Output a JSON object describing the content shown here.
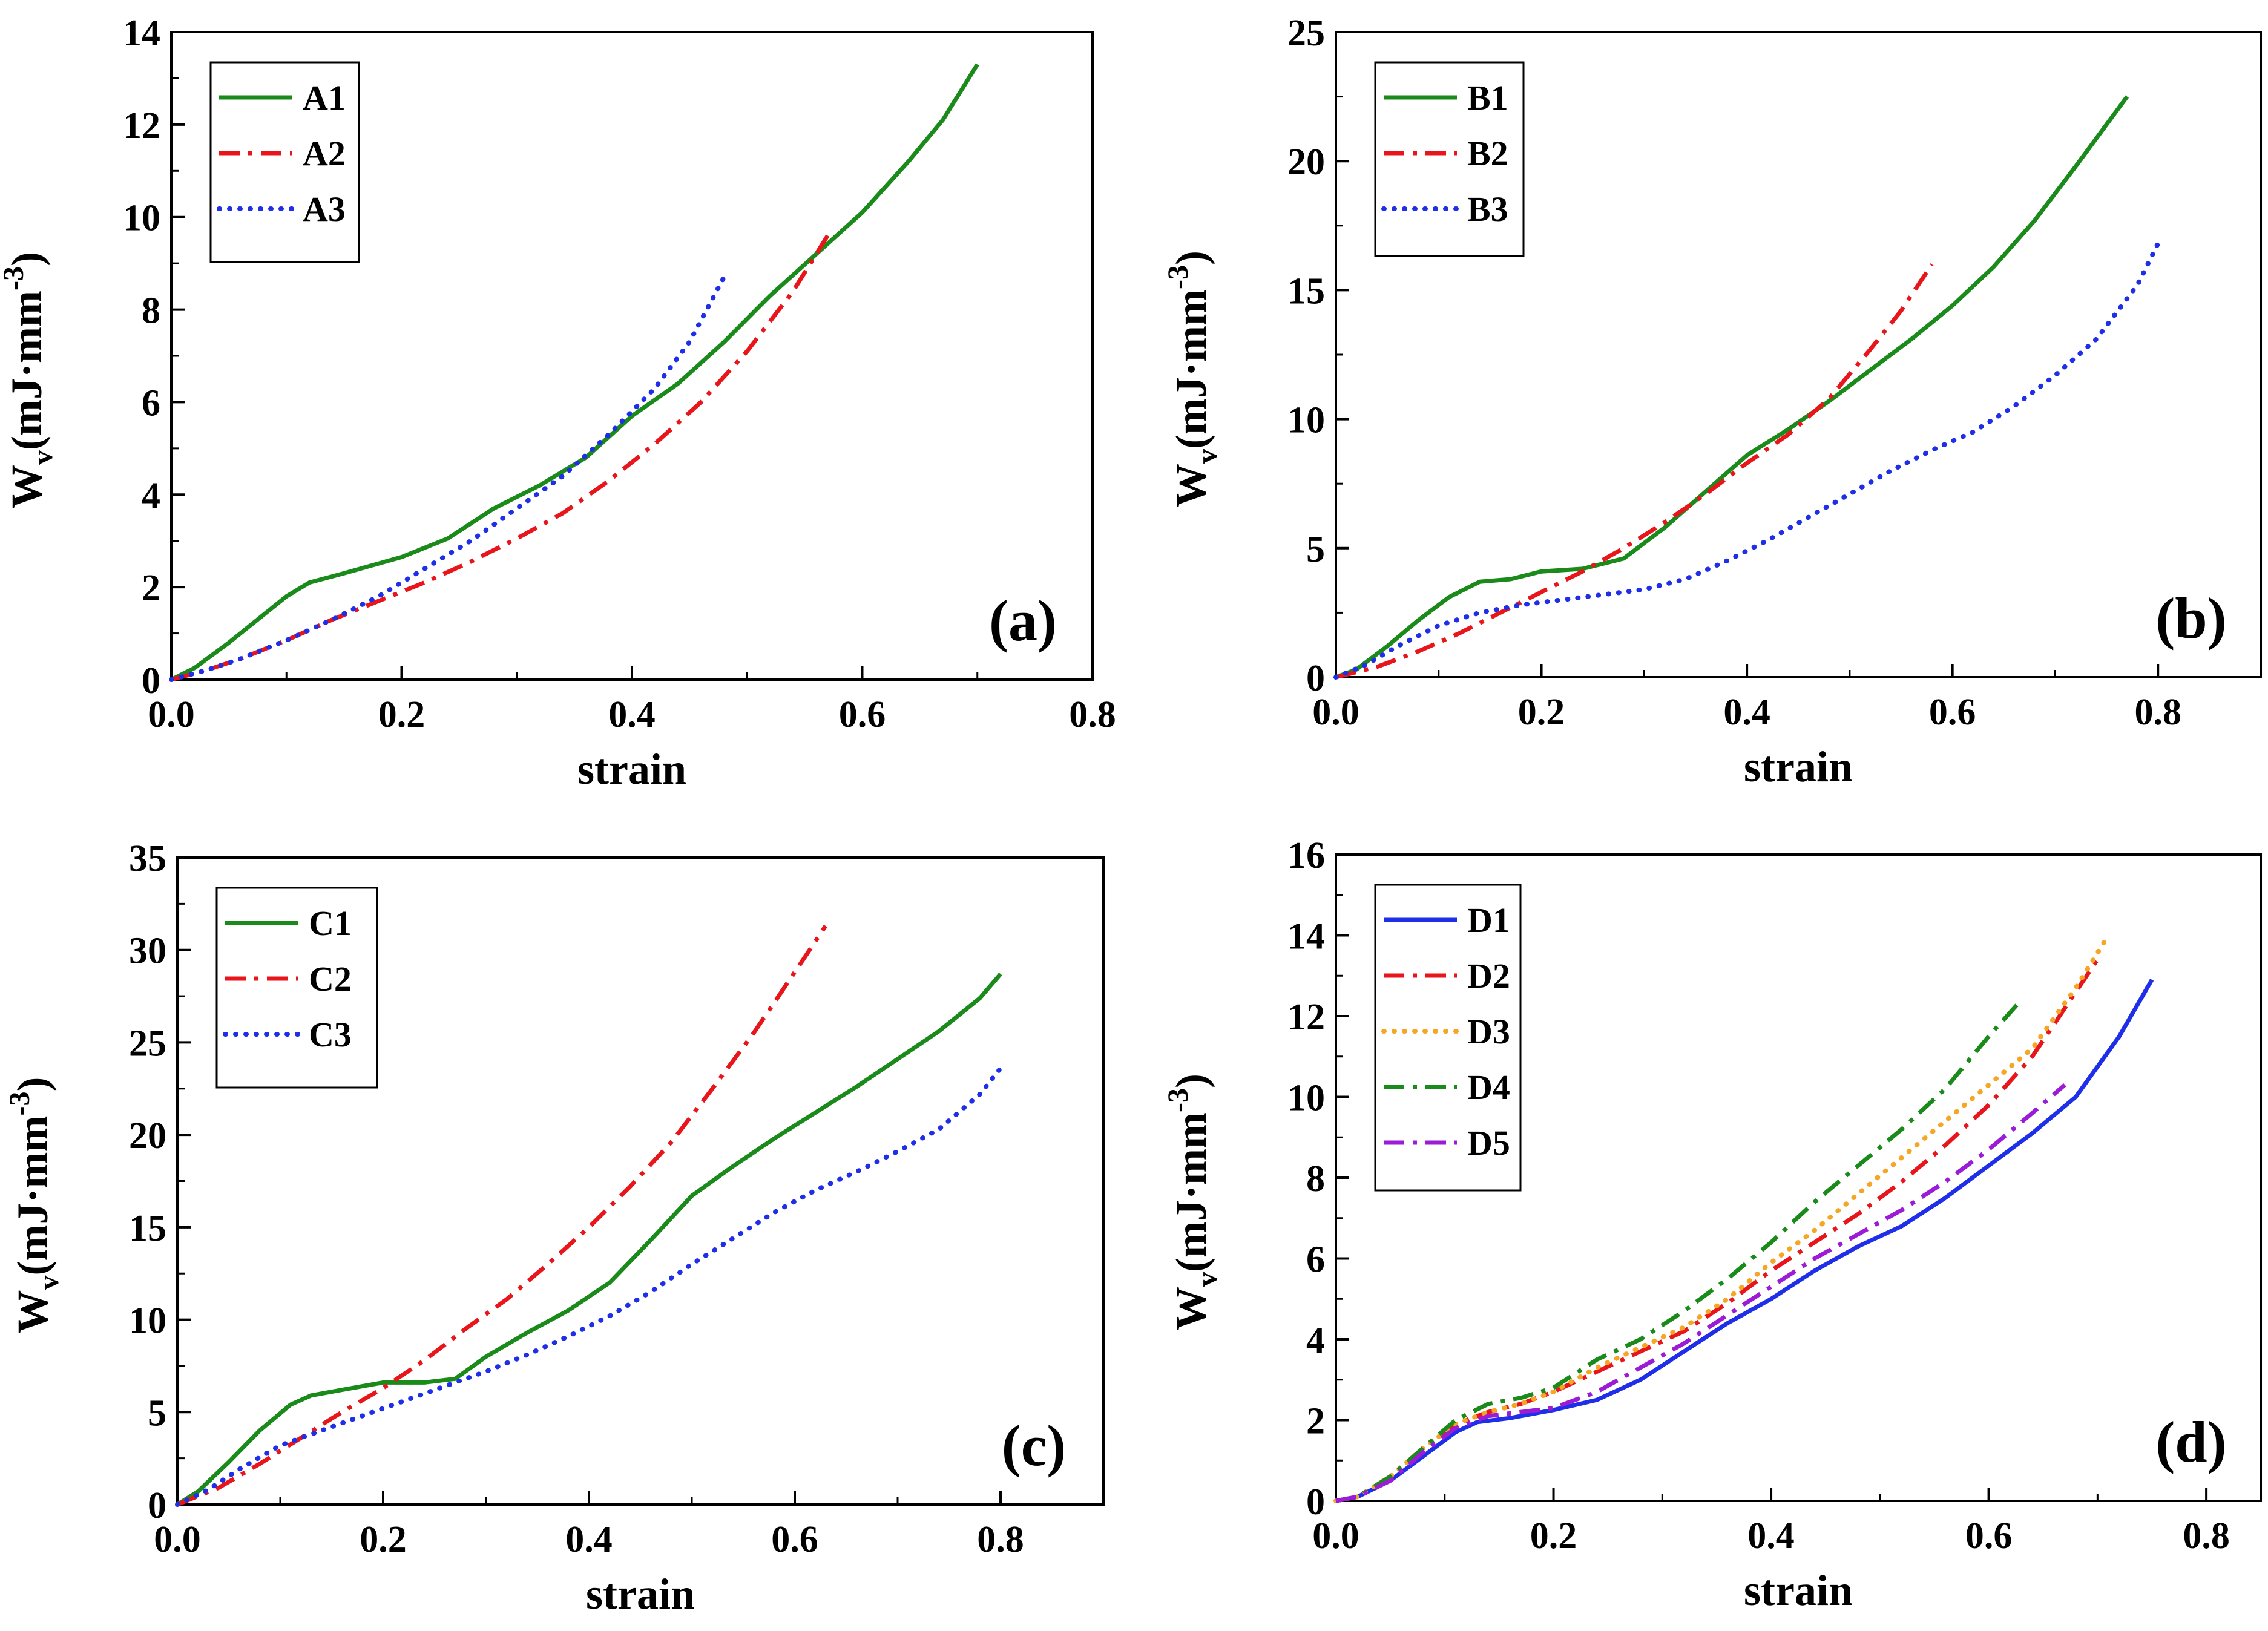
{
  "figure_title": "",
  "chart_data": [
    {
      "type": "line",
      "panel_label": "(a)",
      "xlabel": "strain",
      "ylabel": "W",
      "ylabel_sub": "v",
      "ylabel_units": "(mJ·mm",
      "ylabel_sup": "-3",
      "ylabel_close": ")",
      "xlim": [
        0,
        0.8
      ],
      "ylim": [
        0,
        14
      ],
      "xticks": [
        0.0,
        0.2,
        0.4,
        0.6,
        0.8
      ],
      "xtick_labels": [
        "0.0",
        "0.2",
        "0.4",
        "0.6",
        "0.8"
      ],
      "yticks": [
        0,
        2,
        4,
        6,
        8,
        10,
        12,
        14
      ],
      "ytick_labels": [
        "0",
        "2",
        "4",
        "6",
        "8",
        "10",
        "12",
        "14"
      ],
      "legend_position": "top-left",
      "series": [
        {
          "name": "A1",
          "color": "#1a8a1a",
          "style": "solid",
          "x": [
            0,
            0.02,
            0.05,
            0.08,
            0.1,
            0.12,
            0.15,
            0.2,
            0.24,
            0.28,
            0.32,
            0.36,
            0.4,
            0.44,
            0.48,
            0.52,
            0.56,
            0.6,
            0.64,
            0.67,
            0.7
          ],
          "y": [
            0,
            0.25,
            0.8,
            1.4,
            1.8,
            2.1,
            2.3,
            2.65,
            3.05,
            3.7,
            4.2,
            4.8,
            5.7,
            6.4,
            7.3,
            8.3,
            9.2,
            10.1,
            11.2,
            12.1,
            13.3
          ]
        },
        {
          "name": "A2",
          "color": "#e8161b",
          "style": "dashdot",
          "x": [
            0,
            0.03,
            0.06,
            0.1,
            0.14,
            0.18,
            0.22,
            0.26,
            0.3,
            0.34,
            0.38,
            0.42,
            0.46,
            0.5,
            0.54,
            0.57
          ],
          "y": [
            0,
            0.2,
            0.45,
            0.85,
            1.3,
            1.7,
            2.1,
            2.55,
            3.05,
            3.6,
            4.3,
            5.1,
            6.0,
            7.1,
            8.4,
            9.6
          ]
        },
        {
          "name": "A3",
          "color": "#1f2ee8",
          "style": "dot",
          "x": [
            0,
            0.03,
            0.06,
            0.1,
            0.14,
            0.18,
            0.22,
            0.26,
            0.3,
            0.34,
            0.38,
            0.42,
            0.45,
            0.48
          ],
          "y": [
            0,
            0.2,
            0.45,
            0.85,
            1.3,
            1.8,
            2.4,
            3.0,
            3.7,
            4.4,
            5.3,
            6.3,
            7.3,
            8.7
          ]
        }
      ]
    },
    {
      "type": "line",
      "panel_label": "(b)",
      "xlabel": "strain",
      "ylabel": "W",
      "ylabel_sub": "v",
      "ylabel_units": "(mJ·mm",
      "ylabel_sup": "-3",
      "ylabel_close": ")",
      "xlim": [
        0,
        0.9
      ],
      "ylim": [
        0,
        25
      ],
      "xticks": [
        0.0,
        0.2,
        0.4,
        0.6,
        0.8
      ],
      "xtick_labels": [
        "0.0",
        "0.2",
        "0.4",
        "0.6",
        "0.8"
      ],
      "yticks": [
        0,
        5,
        10,
        15,
        20,
        25
      ],
      "ytick_labels": [
        "0",
        "5",
        "10",
        "15",
        "20",
        "25"
      ],
      "legend_position": "top-left",
      "series": [
        {
          "name": "B1",
          "color": "#1a8a1a",
          "style": "solid",
          "x": [
            0,
            0.02,
            0.05,
            0.08,
            0.11,
            0.14,
            0.17,
            0.2,
            0.24,
            0.28,
            0.32,
            0.36,
            0.4,
            0.44,
            0.48,
            0.52,
            0.56,
            0.6,
            0.64,
            0.68,
            0.72,
            0.77
          ],
          "y": [
            0,
            0.3,
            1.2,
            2.2,
            3.1,
            3.7,
            3.8,
            4.1,
            4.2,
            4.6,
            5.8,
            7.2,
            8.6,
            9.6,
            10.7,
            11.9,
            13.1,
            14.4,
            15.9,
            17.7,
            19.8,
            22.5
          ]
        },
        {
          "name": "B2",
          "color": "#e8161b",
          "style": "dashdot",
          "x": [
            0,
            0.04,
            0.08,
            0.12,
            0.16,
            0.2,
            0.24,
            0.28,
            0.32,
            0.36,
            0.4,
            0.44,
            0.48,
            0.52,
            0.55,
            0.58
          ],
          "y": [
            0,
            0.4,
            1.0,
            1.7,
            2.5,
            3.3,
            4.1,
            5.0,
            6.0,
            7.1,
            8.3,
            9.4,
            10.8,
            12.7,
            14.2,
            16.0
          ]
        },
        {
          "name": "B3",
          "color": "#1f2ee8",
          "style": "dot",
          "x": [
            0,
            0.03,
            0.06,
            0.1,
            0.14,
            0.18,
            0.22,
            0.26,
            0.3,
            0.34,
            0.38,
            0.42,
            0.46,
            0.5,
            0.54,
            0.58,
            0.62,
            0.66,
            0.7,
            0.74,
            0.78,
            0.8
          ],
          "y": [
            0,
            0.5,
            1.2,
            2.0,
            2.5,
            2.8,
            3.0,
            3.2,
            3.4,
            3.8,
            4.5,
            5.3,
            6.2,
            7.1,
            8.0,
            8.8,
            9.5,
            10.5,
            11.7,
            13.1,
            15.2,
            16.8
          ]
        }
      ]
    },
    {
      "type": "line",
      "panel_label": "(c)",
      "xlabel": "strain",
      "ylabel": "W",
      "ylabel_sub": "v",
      "ylabel_units": "(mJ·mm",
      "ylabel_sup": "-3",
      "ylabel_close": ")",
      "xlim": [
        0,
        0.9
      ],
      "ylim": [
        0,
        35
      ],
      "xticks": [
        0.0,
        0.2,
        0.4,
        0.6,
        0.8
      ],
      "xtick_labels": [
        "0.0",
        "0.2",
        "0.4",
        "0.6",
        "0.8"
      ],
      "yticks": [
        0,
        5,
        10,
        15,
        20,
        25,
        30,
        35
      ],
      "ytick_labels": [
        "0",
        "5",
        "10",
        "15",
        "20",
        "25",
        "30",
        "35"
      ],
      "legend_position": "top-left",
      "series": [
        {
          "name": "C1",
          "color": "#1a8a1a",
          "style": "solid",
          "x": [
            0,
            0.02,
            0.05,
            0.08,
            0.11,
            0.13,
            0.16,
            0.2,
            0.24,
            0.27,
            0.3,
            0.34,
            0.38,
            0.42,
            0.46,
            0.5,
            0.54,
            0.58,
            0.62,
            0.66,
            0.7,
            0.74,
            0.78,
            0.8
          ],
          "y": [
            0,
            0.7,
            2.3,
            4.0,
            5.4,
            5.9,
            6.2,
            6.6,
            6.6,
            6.8,
            8.0,
            9.3,
            10.5,
            12.0,
            14.3,
            16.7,
            18.3,
            19.8,
            21.2,
            22.6,
            24.1,
            25.6,
            27.4,
            28.7
          ]
        },
        {
          "name": "C2",
          "color": "#e8161b",
          "style": "dashdot",
          "x": [
            0,
            0.04,
            0.08,
            0.12,
            0.16,
            0.2,
            0.24,
            0.28,
            0.32,
            0.36,
            0.4,
            0.44,
            0.48,
            0.52,
            0.56,
            0.6,
            0.63
          ],
          "y": [
            0,
            0.9,
            2.2,
            3.6,
            5.0,
            6.3,
            7.8,
            9.5,
            11.1,
            13.0,
            15.0,
            17.2,
            19.6,
            22.5,
            25.5,
            28.8,
            31.3
          ]
        },
        {
          "name": "C3",
          "color": "#1f2ee8",
          "style": "dot",
          "x": [
            0,
            0.03,
            0.06,
            0.1,
            0.14,
            0.18,
            0.22,
            0.26,
            0.3,
            0.34,
            0.38,
            0.42,
            0.46,
            0.5,
            0.54,
            0.58,
            0.62,
            0.66,
            0.7,
            0.74,
            0.78,
            0.8
          ],
          "y": [
            0,
            0.8,
            1.9,
            3.2,
            4.0,
            4.8,
            5.6,
            6.4,
            7.2,
            8.1,
            9.1,
            10.2,
            11.5,
            13.0,
            14.4,
            15.8,
            17.0,
            18.0,
            19.1,
            20.3,
            22.2,
            23.6
          ]
        }
      ]
    },
    {
      "type": "line",
      "panel_label": "(d)",
      "xlabel": "strain",
      "ylabel": "W",
      "ylabel_sub": "v",
      "ylabel_units": "(mJ·mm",
      "ylabel_sup": "-3",
      "ylabel_close": ")",
      "xlim": [
        0,
        0.85
      ],
      "ylim": [
        0,
        16
      ],
      "xticks": [
        0.0,
        0.2,
        0.4,
        0.6,
        0.8
      ],
      "xtick_labels": [
        "0.0",
        "0.2",
        "0.4",
        "0.6",
        "0.8"
      ],
      "yticks": [
        0,
        2,
        4,
        6,
        8,
        10,
        12,
        14,
        16
      ],
      "ytick_labels": [
        "0",
        "2",
        "4",
        "6",
        "8",
        "10",
        "12",
        "14",
        "16"
      ],
      "legend_position": "top-left",
      "series": [
        {
          "name": "D1",
          "color": "#1f2ee8",
          "style": "solid",
          "x": [
            0,
            0.02,
            0.05,
            0.08,
            0.11,
            0.13,
            0.16,
            0.2,
            0.24,
            0.28,
            0.32,
            0.36,
            0.4,
            0.44,
            0.48,
            0.52,
            0.56,
            0.6,
            0.64,
            0.68,
            0.72,
            0.75
          ],
          "y": [
            0,
            0.1,
            0.5,
            1.1,
            1.7,
            1.95,
            2.05,
            2.25,
            2.5,
            3.0,
            3.7,
            4.4,
            5.0,
            5.7,
            6.3,
            6.8,
            7.5,
            8.3,
            9.1,
            10.0,
            11.5,
            12.9
          ]
        },
        {
          "name": "D2",
          "color": "#e8161b",
          "style": "dashdot",
          "x": [
            0,
            0.02,
            0.05,
            0.08,
            0.11,
            0.14,
            0.17,
            0.2,
            0.24,
            0.28,
            0.32,
            0.36,
            0.4,
            0.44,
            0.48,
            0.52,
            0.56,
            0.6,
            0.64,
            0.68,
            0.7
          ],
          "y": [
            0,
            0.1,
            0.6,
            1.3,
            1.9,
            2.2,
            2.4,
            2.7,
            3.2,
            3.7,
            4.2,
            4.9,
            5.7,
            6.4,
            7.1,
            7.9,
            8.8,
            9.8,
            11.0,
            12.6,
            13.4
          ]
        },
        {
          "name": "D3",
          "color": "#f5a623",
          "style": "dot",
          "x": [
            0,
            0.02,
            0.05,
            0.08,
            0.11,
            0.14,
            0.17,
            0.2,
            0.24,
            0.28,
            0.32,
            0.36,
            0.4,
            0.44,
            0.48,
            0.52,
            0.56,
            0.6,
            0.64,
            0.68,
            0.71
          ],
          "y": [
            0,
            0.1,
            0.6,
            1.3,
            1.9,
            2.2,
            2.4,
            2.7,
            3.3,
            3.8,
            4.3,
            5.0,
            5.9,
            6.7,
            7.6,
            8.5,
            9.4,
            10.3,
            11.2,
            12.7,
            14.0
          ]
        },
        {
          "name": "D4",
          "color": "#1a8a1a",
          "style": "dashdot",
          "x": [
            0,
            0.02,
            0.05,
            0.08,
            0.11,
            0.14,
            0.17,
            0.2,
            0.24,
            0.28,
            0.32,
            0.36,
            0.4,
            0.44,
            0.48,
            0.52,
            0.56,
            0.6,
            0.63
          ],
          "y": [
            0,
            0.1,
            0.6,
            1.3,
            2.0,
            2.4,
            2.55,
            2.8,
            3.5,
            4.0,
            4.7,
            5.5,
            6.4,
            7.4,
            8.3,
            9.2,
            10.2,
            11.5,
            12.4
          ]
        },
        {
          "name": "D5",
          "color": "#9b1bd6",
          "style": "dashdot",
          "x": [
            0,
            0.02,
            0.05,
            0.08,
            0.11,
            0.14,
            0.17,
            0.2,
            0.24,
            0.28,
            0.32,
            0.36,
            0.4,
            0.44,
            0.48,
            0.52,
            0.56,
            0.6,
            0.64,
            0.67
          ],
          "y": [
            0,
            0.1,
            0.5,
            1.2,
            1.8,
            2.1,
            2.2,
            2.3,
            2.7,
            3.3,
            3.9,
            4.6,
            5.3,
            6.0,
            6.6,
            7.2,
            7.9,
            8.7,
            9.6,
            10.3
          ]
        }
      ]
    }
  ]
}
